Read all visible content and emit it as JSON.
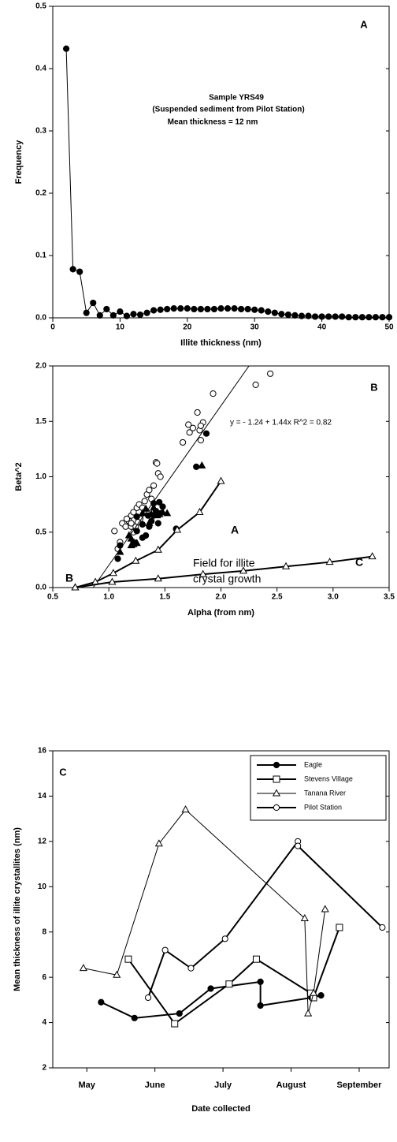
{
  "chart_data": [
    {
      "type": "line",
      "xlabel": "Illite thickness (nm)",
      "ylabel": "Frequency",
      "annotations": [
        "A",
        "Sample YRS49",
        "(Suspended sediment from Pilot Station)",
        "Mean thickness = 12 nm"
      ],
      "xlim": [
        0,
        50
      ],
      "xticks": [
        0,
        10,
        20,
        30,
        40,
        50
      ],
      "ylim": [
        0,
        0.5
      ],
      "yticks": [
        {
          "value": 0,
          "label": "0.0"
        },
        0.1,
        0.2,
        0.3,
        0.4,
        0.5
      ],
      "series": [
        {
          "color": "#000000",
          "marker": "filled-circle",
          "line": 1,
          "x": [
            2,
            3,
            4,
            5,
            6,
            7,
            8,
            9,
            10,
            11,
            12,
            13,
            14,
            15,
            16,
            17,
            18,
            19,
            20,
            21,
            22,
            23,
            24,
            25,
            26,
            27,
            28,
            29,
            30,
            31,
            32,
            33,
            34,
            35,
            36,
            37,
            38,
            39,
            40,
            41,
            42,
            43,
            44,
            45,
            46,
            47,
            48,
            49,
            50
          ],
          "values": [
            0.432,
            0.078,
            0.074,
            0.008,
            0.024,
            0.004,
            0.014,
            0.004,
            0.01,
            0.003,
            0.006,
            0.005,
            0.008,
            0.012,
            0.013,
            0.014,
            0.015,
            0.015,
            0.015,
            0.014,
            0.014,
            0.014,
            0.014,
            0.015,
            0.015,
            0.015,
            0.014,
            0.014,
            0.013,
            0.012,
            0.01,
            0.008,
            0.006,
            0.005,
            0.004,
            0.003,
            0.003,
            0.002,
            0.002,
            0.002,
            0.002,
            0.002,
            0.001,
            0.001,
            0.001,
            0.001,
            0.001,
            0.001,
            0.001
          ]
        }
      ]
    },
    {
      "type": "scatter",
      "xlabel": "Alpha (from nm)",
      "ylabel": "Beta^2",
      "annotations": [
        "B",
        "y = - 1.24 + 1.44x   R^2 = 0.82",
        "A",
        "Field for illite",
        "crystal growth",
        "C",
        "B"
      ],
      "xlim": [
        0.5,
        3.5
      ],
      "xticks": [
        0.5,
        {
          "value": 1,
          "label": "1.0"
        },
        1.5,
        {
          "value": 2,
          "label": "2.0"
        },
        2.5,
        {
          "value": 3,
          "label": "3.0"
        },
        3.5
      ],
      "ylim": [
        0,
        2
      ],
      "yticks": [
        {
          "value": 0,
          "label": "0.0"
        },
        0.5,
        {
          "value": 1,
          "label": "1.0"
        },
        1.5,
        {
          "value": 2,
          "label": "2.0"
        }
      ],
      "series": [
        {
          "color": "#000000",
          "marker": "open-circle",
          "line": 0,
          "x": [
            1.05,
            1.08,
            1.1,
            1.12,
            1.15,
            1.17,
            1.18,
            1.2,
            1.2,
            1.22,
            1.24,
            1.25,
            1.27,
            1.3,
            1.32,
            1.34,
            1.36,
            1.38,
            1.4,
            1.42,
            1.43,
            1.44,
            1.46,
            1.35,
            1.28,
            1.22,
            1.16,
            1.2,
            1.66,
            1.71,
            1.72,
            1.75,
            1.79,
            1.81,
            1.82,
            1.84,
            1.82,
            1.93,
            2.31,
            2.44,
            1.26,
            1.34
          ],
          "values": [
            0.51,
            0.35,
            0.41,
            0.58,
            0.55,
            0.62,
            0.6,
            0.55,
            0.65,
            0.68,
            0.55,
            0.72,
            0.75,
            0.72,
            0.78,
            0.84,
            0.88,
            0.8,
            0.92,
            1.13,
            1.12,
            1.03,
            1.0,
            0.66,
            0.62,
            0.5,
            0.62,
            0.58,
            1.31,
            1.47,
            1.4,
            1.44,
            1.58,
            1.42,
            1.33,
            1.49,
            1.46,
            1.75,
            1.83,
            1.93,
            0.59,
            0.68
          ]
        },
        {
          "color": "#000000",
          "marker": "filled-circle",
          "line": 0,
          "x": [
            1.08,
            1.1,
            1.22,
            1.25,
            1.3,
            1.33,
            1.36,
            1.38,
            1.4,
            1.42,
            1.44,
            1.46,
            1.48,
            1.45,
            1.4,
            1.35,
            1.6,
            1.78,
            1.87,
            1.25,
            1.3
          ],
          "values": [
            0.26,
            0.38,
            0.41,
            0.51,
            0.45,
            0.47,
            0.55,
            0.6,
            0.65,
            0.69,
            0.58,
            0.67,
            0.73,
            0.77,
            0.76,
            0.65,
            0.53,
            1.09,
            1.39,
            0.64,
            0.57
          ]
        },
        {
          "color": "#000000",
          "marker": "filled-triangle",
          "line": 0,
          "x": [
            1.1,
            1.18,
            1.2,
            1.22,
            1.25,
            1.3,
            1.33,
            1.36,
            1.4,
            1.43,
            1.45,
            1.48,
            1.52,
            1.38,
            1.83,
            1.2
          ],
          "values": [
            0.32,
            0.47,
            0.38,
            0.39,
            0.4,
            0.67,
            0.71,
            0.58,
            0.72,
            0.65,
            0.66,
            0.68,
            0.67,
            0.66,
            1.1,
            0.44
          ]
        },
        {
          "color": "#000000",
          "marker": "none",
          "line": 1,
          "x": [
            0.86,
            2.25
          ],
          "values": [
            0,
            2
          ]
        },
        {
          "color": "#000000",
          "marker": "open-triangle",
          "line": 2,
          "x": [
            0.7,
            0.88,
            1.04,
            1.24,
            1.44,
            1.61,
            1.81,
            2.0
          ],
          "values": [
            0,
            0.05,
            0.13,
            0.24,
            0.34,
            0.52,
            0.68,
            0.96
          ]
        },
        {
          "color": "#000000",
          "marker": "open-triangle",
          "line": 2,
          "x": [
            0.7,
            1.03,
            1.44,
            1.84,
            2.2,
            2.58,
            2.97,
            3.35
          ],
          "values": [
            0,
            0.05,
            0.08,
            0.12,
            0.15,
            0.19,
            0.23,
            0.28
          ]
        }
      ]
    },
    {
      "type": "line",
      "xlabel": "Date collected",
      "ylabel": "Mean thickness of illite crystallites (nm)",
      "annotations": [
        "C"
      ],
      "legend": "upper right",
      "xlim": [
        5,
        9.94
      ],
      "xticks": [
        {
          "value": 5.5,
          "label": "May"
        },
        {
          "value": 6.5,
          "label": "June"
        },
        {
          "value": 7.5,
          "label": "July"
        },
        {
          "value": 8.5,
          "label": "August"
        },
        {
          "value": 9.5,
          "label": "September"
        }
      ],
      "ylim": [
        2,
        16
      ],
      "yticks": [
        2,
        4,
        6,
        8,
        10,
        12,
        14,
        16
      ],
      "series": [
        {
          "name": "Eagle",
          "color": "#000000",
          "marker": "filled-circle",
          "line": 2,
          "x": [
            5.71,
            6.2,
            6.86,
            7.32,
            8.05,
            8.05,
            8.8,
            8.94
          ],
          "values": [
            4.9,
            4.2,
            4.4,
            5.5,
            5.8,
            4.75,
            5.1,
            5.2
          ]
        },
        {
          "name": "Stevens Village",
          "color": "#000000",
          "marker": "open-square",
          "line": 2,
          "x": [
            6.11,
            6.79,
            7.59,
            7.99,
            8.79,
            8.83,
            9.21
          ],
          "values": [
            6.8,
            3.95,
            5.7,
            6.8,
            5.3,
            5.1,
            8.2
          ]
        },
        {
          "name": "Tanana River",
          "color": "#000000",
          "marker": "open-triangle",
          "line": 1,
          "x": [
            5.45,
            5.94,
            6.56,
            6.95,
            8.7,
            8.75,
            8.83,
            9.0
          ],
          "values": [
            6.4,
            6.1,
            11.9,
            13.4,
            8.6,
            4.4,
            5.3,
            9.0
          ]
        },
        {
          "name": "Pilot Station",
          "color": "#000000",
          "marker": "open-circle",
          "line": 2,
          "x": [
            6.4,
            6.65,
            7.03,
            7.53,
            8.6,
            8.6,
            9.84
          ],
          "values": [
            5.1,
            7.2,
            6.4,
            7.7,
            12.0,
            11.8,
            8.2
          ]
        }
      ]
    }
  ]
}
